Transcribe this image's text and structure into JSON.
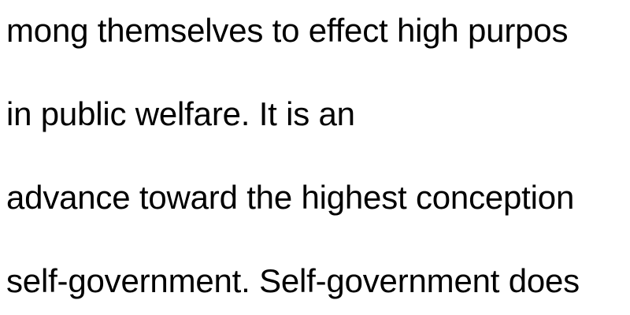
{
  "document": {
    "lines": [
      "mong themselves to effect high purpos",
      "in public welfare. It is an",
      "advance toward the highest conception",
      "self-government. Self-government does"
    ]
  }
}
